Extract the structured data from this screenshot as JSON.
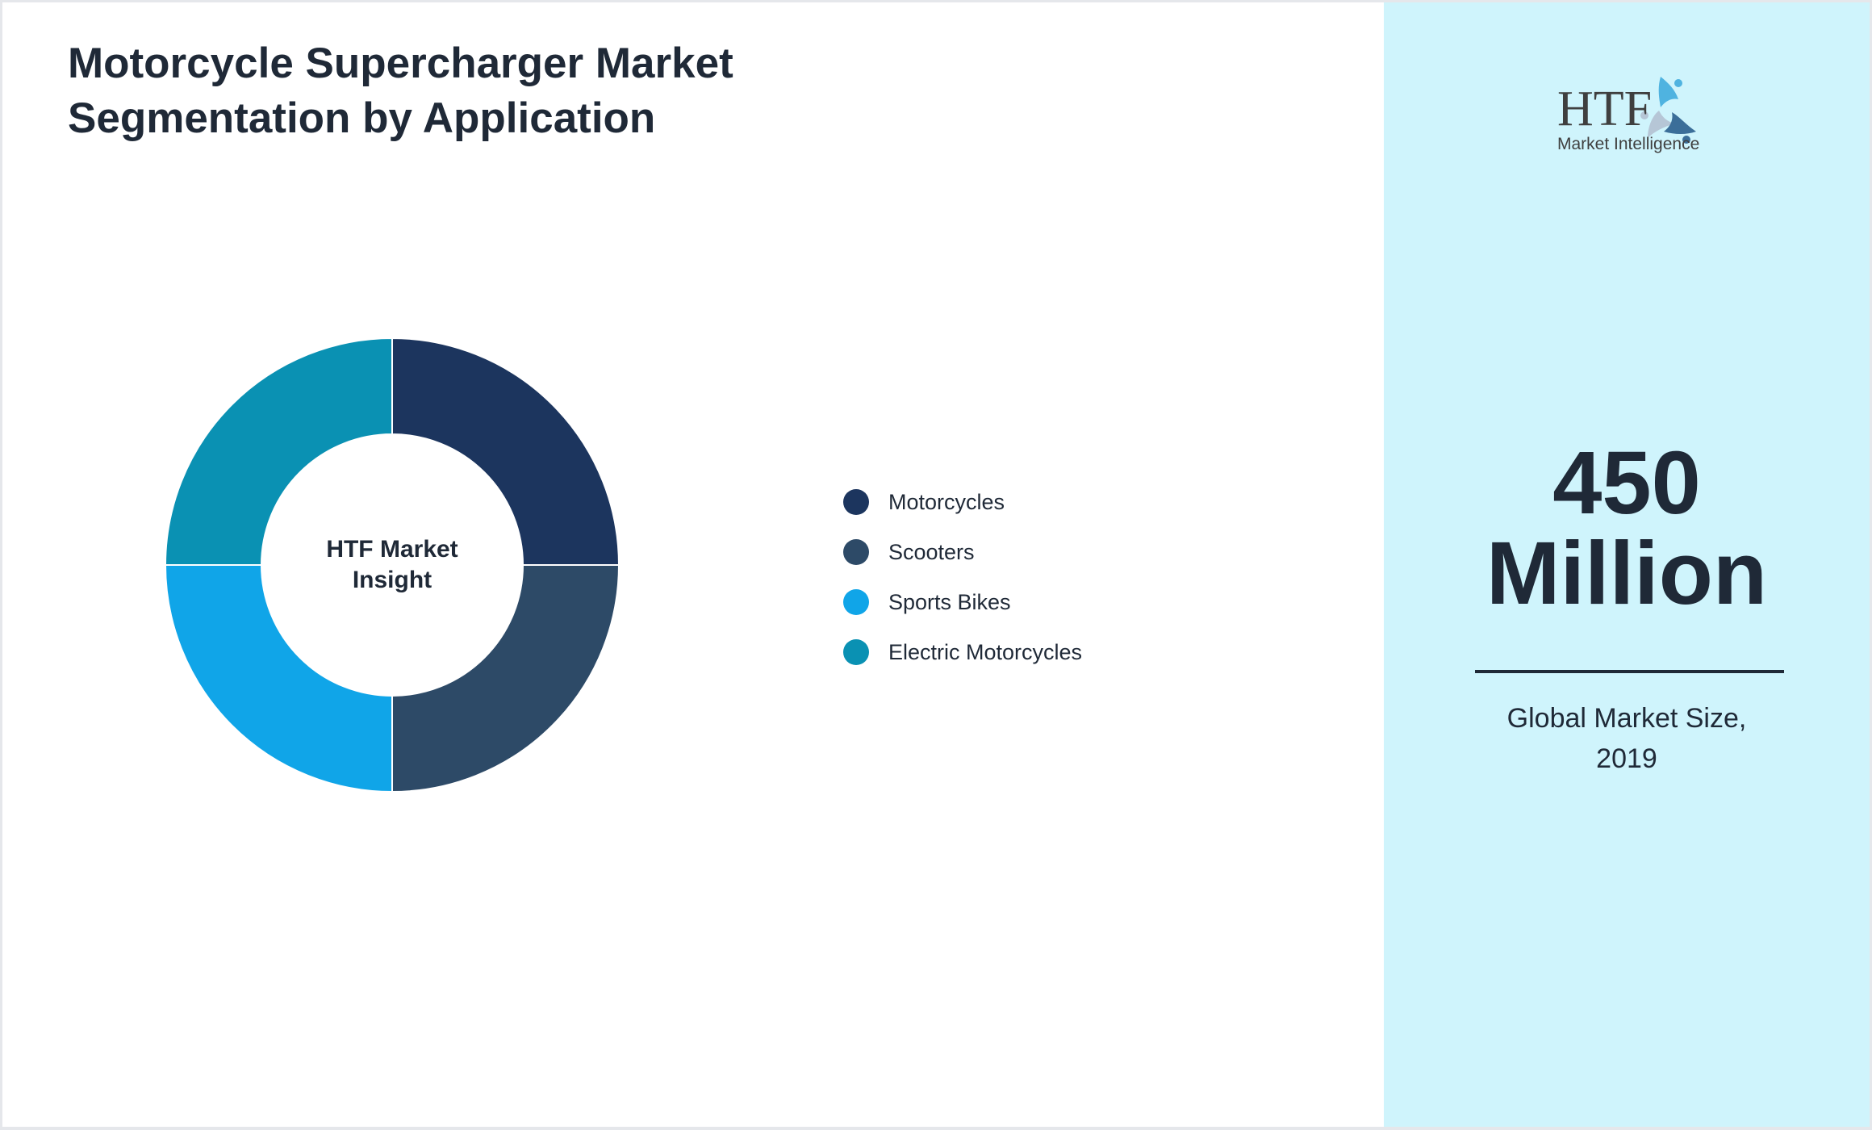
{
  "header": {
    "title": "Motorcycle Supercharger Market Segmentation by Application"
  },
  "donut": {
    "center_label_line1": "HTF Market",
    "center_label_line2": "Insight"
  },
  "legend": {
    "items": [
      {
        "label": "Motorcycles",
        "color": "#1c355e"
      },
      {
        "label": "Scooters",
        "color": "#2d4a67"
      },
      {
        "label": "Sports Bikes",
        "color": "#10a5e8"
      },
      {
        "label": "Electric Motorcycles",
        "color": "#0a91b3"
      }
    ]
  },
  "side_panel": {
    "logo": {
      "wordmark": "HTF",
      "tagline": "Market Intelligence",
      "icon": "people-circle-logo-icon"
    },
    "market_size_value": "450",
    "market_size_unit": "Million",
    "caption_line1": "Global Market Size,",
    "caption_line2": "2019",
    "background_color": "#cff4fc"
  },
  "chart_data": {
    "type": "pie",
    "subtype": "donut",
    "title": "Motorcycle Supercharger Market Segmentation by Application",
    "categories": [
      "Motorcycles",
      "Scooters",
      "Sports Bikes",
      "Electric Motorcycles"
    ],
    "values": [
      25,
      25,
      25,
      25
    ],
    "colors": [
      "#1c355e",
      "#2d4a67",
      "#10a5e8",
      "#0a91b3"
    ],
    "center_text": "HTF Market Insight",
    "legend_position": "right",
    "start_angle_deg": 0,
    "direction": "clockwise"
  }
}
